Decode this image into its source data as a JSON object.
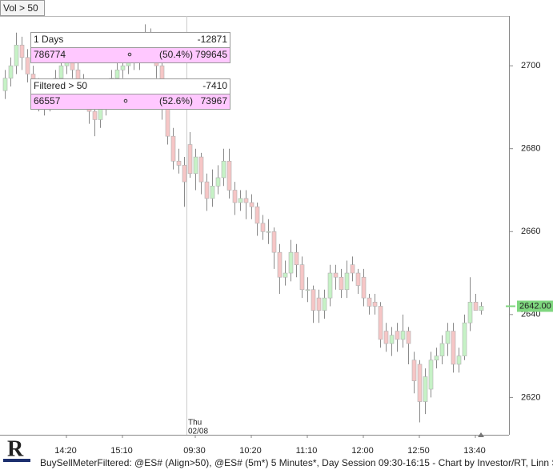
{
  "toolbar": {
    "button": "Vol > 50"
  },
  "panels": [
    {
      "title": "1 Days",
      "net": -12871,
      "buy": 786774,
      "percent": "(50.4%)",
      "total": 799645
    },
    {
      "title": "Filtered > 50",
      "net": -7410,
      "buy": 66557,
      "percent": "(52.6%)",
      "total": 73967
    }
  ],
  "chart_data": {
    "type": "candlestick",
    "categories": [
      null,
      null,
      null,
      null,
      null,
      null,
      null,
      null,
      null,
      null,
      null,
      "14:20",
      null,
      null,
      null,
      null,
      null,
      null,
      null,
      null,
      null,
      "15:10",
      null,
      null,
      null,
      null,
      null,
      null,
      null,
      null,
      null,
      null,
      null,
      null,
      "09:30",
      null,
      null,
      null,
      null,
      null,
      null,
      null,
      null,
      null,
      "10:20",
      null,
      null,
      null,
      null,
      null,
      null,
      null,
      null,
      null,
      "11:10",
      null,
      null,
      null,
      null,
      null,
      null,
      null,
      null,
      null,
      "12:00",
      null,
      null,
      null,
      null,
      null,
      null,
      null,
      null,
      null,
      "12:50",
      null,
      null,
      null,
      null,
      null,
      null,
      null,
      null,
      null,
      "13:40",
      null
    ],
    "open": [
      2694,
      2697,
      2700,
      2705,
      2702,
      2698,
      2695,
      2692,
      2690,
      2693,
      2697,
      2700,
      2702,
      2699,
      2696,
      2693,
      2689,
      2687,
      2690,
      2694,
      2697,
      2699,
      2700,
      2702,
      2701,
      2703,
      2705,
      2704,
      2700,
      2690,
      2683,
      2677,
      2676,
      2681,
      2674,
      2678,
      2672,
      2668,
      2671,
      2673,
      2677,
      2670,
      2667,
      2668,
      2667,
      2666,
      2662,
      2660,
      2660,
      2655,
      2649,
      2650,
      2655,
      2652,
      2646,
      2646,
      2644,
      2641,
      2644,
      2650,
      2649,
      2646,
      2652,
      2650,
      2649,
      2644,
      2643,
      2642,
      2636,
      2633,
      2636,
      2634,
      2636,
      2629,
      2628,
      2619,
      2622,
      2629,
      2630,
      2633,
      2636,
      2628,
      2630,
      2638,
      2643,
      2641
    ],
    "high": [
      2699,
      2702,
      2708,
      2707,
      2704,
      2700,
      2697,
      2694,
      2695,
      2699,
      2702,
      2705,
      2704,
      2701,
      2698,
      2695,
      2691,
      2692,
      2696,
      2699,
      2701,
      2703,
      2705,
      2704,
      2706,
      2710,
      2709,
      2706,
      2702,
      2692,
      2685,
      2680,
      2678,
      2684,
      2680,
      2679,
      2674,
      2675,
      2676,
      2680,
      2680,
      2672,
      2670,
      2670,
      2669,
      2667,
      2664,
      2663,
      2661,
      2657,
      2653,
      2658,
      2657,
      2654,
      2649,
      2647,
      2646,
      2646,
      2652,
      2652,
      2651,
      2653,
      2654,
      2651,
      2651,
      2645,
      2645,
      2643,
      2638,
      2637,
      2638,
      2640,
      2637,
      2631,
      2629,
      2627,
      2631,
      2632,
      2635,
      2638,
      2638,
      2632,
      2640,
      2649,
      2645,
      2643
    ],
    "low": [
      2692,
      2695,
      2698,
      2699,
      2696,
      2692,
      2689,
      2688,
      2689,
      2691,
      2695,
      2698,
      2697,
      2694,
      2690,
      2686,
      2683,
      2685,
      2688,
      2692,
      2695,
      2697,
      2698,
      2699,
      2699,
      2701,
      2701,
      2697,
      2687,
      2681,
      2675,
      2674,
      2666,
      2673,
      2670,
      2669,
      2665,
      2666,
      2669,
      2671,
      2668,
      2664,
      2665,
      2663,
      2663,
      2659,
      2658,
      2657,
      2651,
      2645,
      2647,
      2648,
      2649,
      2644,
      2643,
      2638,
      2638,
      2639,
      2642,
      2646,
      2644,
      2644,
      2648,
      2645,
      2642,
      2640,
      2640,
      2632,
      2631,
      2630,
      2631,
      2632,
      2628,
      2621,
      2614,
      2616,
      2620,
      2627,
      2628,
      2630,
      2626,
      2626,
      2629,
      2636,
      2641,
      2640
    ],
    "close": [
      2697,
      2700,
      2705,
      2702,
      2698,
      2695,
      2692,
      2690,
      2693,
      2697,
      2700,
      2702,
      2699,
      2696,
      2693,
      2689,
      2687,
      2690,
      2694,
      2697,
      2699,
      2700,
      2702,
      2701,
      2703,
      2705,
      2704,
      2700,
      2690,
      2683,
      2677,
      2676,
      2672,
      2674,
      2678,
      2672,
      2668,
      2671,
      2673,
      2677,
      2670,
      2667,
      2668,
      2667,
      2666,
      2662,
      2660,
      2660,
      2655,
      2649,
      2650,
      2655,
      2652,
      2646,
      2646,
      2641,
      2641,
      2644,
      2650,
      2649,
      2646,
      2650,
      2650,
      2647,
      2644,
      2642,
      2642,
      2634,
      2633,
      2635,
      2634,
      2636,
      2633,
      2624,
      2619,
      2625,
      2629,
      2630,
      2633,
      2636,
      2628,
      2630,
      2638,
      2643,
      2641,
      2642
    ],
    "up_color": "#c6f2c6",
    "down_color": "#f6c6c6",
    "ylim": [
      2611,
      2712
    ],
    "yticks": [
      2620,
      2640,
      2660,
      2680,
      2700
    ],
    "last_price": {
      "value": 2642,
      "label": "2642.00"
    },
    "session_break": {
      "day": "Thu",
      "date": "02/08"
    }
  },
  "footer": {
    "text": "BuySellMeterFiltered: @ES# (Align>50), @ES# (5m*) 5 Minutes*, Day Session 09:30-16:15 - Chart by Investor/RT, Linn Software, Ir"
  }
}
